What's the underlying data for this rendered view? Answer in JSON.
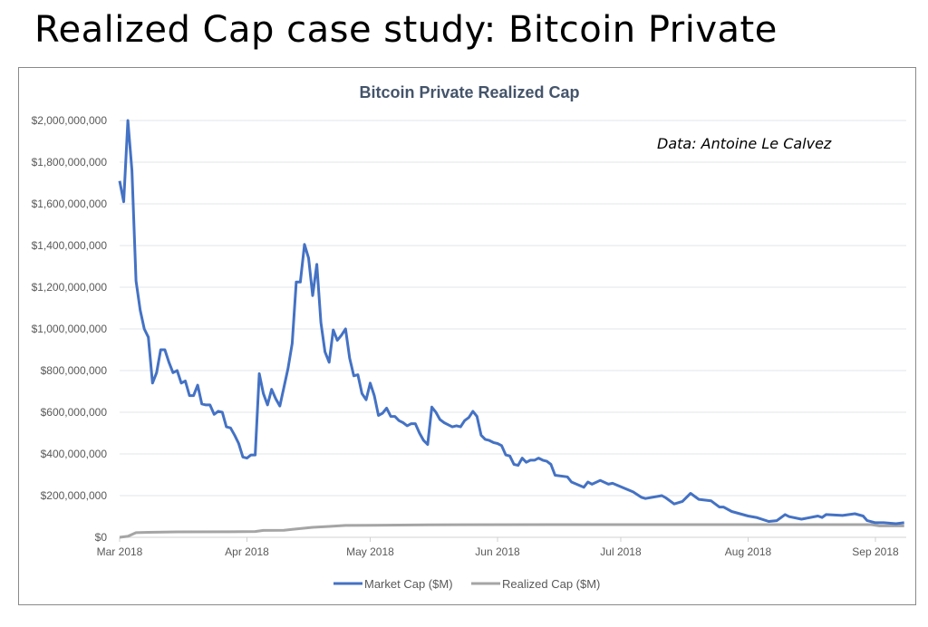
{
  "slide_title": "Realized Cap case study: Bitcoin Private",
  "chart_data": {
    "type": "line",
    "title": "Bitcoin Private Realized Cap",
    "annotation": "Data: Antoine Le Calvez",
    "xlabel": "",
    "ylabel": "",
    "xlim": [
      "2018-03-01",
      "2018-09-09"
    ],
    "ylim": [
      0,
      2000000000
    ],
    "y_ticks": [
      0,
      200000000,
      400000000,
      600000000,
      800000000,
      1000000000,
      1200000000,
      1400000000,
      1600000000,
      1800000000,
      2000000000
    ],
    "y_tick_labels": [
      "$0",
      "$200,000,000",
      "$400,000,000",
      "$600,000,000",
      "$800,000,000",
      "$1,000,000,000",
      "$1,200,000,000",
      "$1,400,000,000",
      "$1,600,000,000",
      "$1,800,000,000",
      "$2,000,000,000"
    ],
    "x_ticks": [
      "2018-03-01",
      "2018-04-01",
      "2018-05-01",
      "2018-06-01",
      "2018-07-01",
      "2018-08-01",
      "2018-09-01"
    ],
    "x_tick_labels": [
      "Mar 2018",
      "Apr 2018",
      "May 2018",
      "Jun 2018",
      "Jul 2018",
      "Aug 2018",
      "Sep 2018"
    ],
    "grid": "horizontal",
    "legend_placement": "bottom",
    "series": [
      {
        "name": "Market Cap ($M)",
        "color": "#4472c4",
        "points": [
          [
            "2018-03-01",
            1710
          ],
          [
            "2018-03-02",
            1610
          ],
          [
            "2018-03-03",
            2000
          ],
          [
            "2018-03-04",
            1760
          ],
          [
            "2018-03-05",
            1230
          ],
          [
            "2018-03-06",
            1090
          ],
          [
            "2018-03-07",
            1000
          ],
          [
            "2018-03-08",
            960
          ],
          [
            "2018-03-09",
            740
          ],
          [
            "2018-03-10",
            790
          ],
          [
            "2018-03-11",
            900
          ],
          [
            "2018-03-12",
            900
          ],
          [
            "2018-03-13",
            840
          ],
          [
            "2018-03-14",
            790
          ],
          [
            "2018-03-15",
            800
          ],
          [
            "2018-03-16",
            740
          ],
          [
            "2018-03-17",
            750
          ],
          [
            "2018-03-18",
            680
          ],
          [
            "2018-03-19",
            680
          ],
          [
            "2018-03-20",
            730
          ],
          [
            "2018-03-21",
            640
          ],
          [
            "2018-03-22",
            635
          ],
          [
            "2018-03-23",
            635
          ],
          [
            "2018-03-24",
            590
          ],
          [
            "2018-03-25",
            605
          ],
          [
            "2018-03-26",
            600
          ],
          [
            "2018-03-27",
            530
          ],
          [
            "2018-03-28",
            525
          ],
          [
            "2018-03-29",
            490
          ],
          [
            "2018-03-30",
            450
          ],
          [
            "2018-03-31",
            385
          ],
          [
            "2018-04-01",
            380
          ],
          [
            "2018-04-02",
            395
          ],
          [
            "2018-04-03",
            395
          ],
          [
            "2018-04-04",
            785
          ],
          [
            "2018-04-05",
            690
          ],
          [
            "2018-04-06",
            635
          ],
          [
            "2018-04-07",
            710
          ],
          [
            "2018-04-08",
            665
          ],
          [
            "2018-04-09",
            630
          ],
          [
            "2018-04-10",
            720
          ],
          [
            "2018-04-11",
            810
          ],
          [
            "2018-04-12",
            930
          ],
          [
            "2018-04-13",
            1225
          ],
          [
            "2018-04-14",
            1225
          ],
          [
            "2018-04-15",
            1405
          ],
          [
            "2018-04-16",
            1340
          ],
          [
            "2018-04-17",
            1160
          ],
          [
            "2018-04-18",
            1310
          ],
          [
            "2018-04-19",
            1030
          ],
          [
            "2018-04-20",
            890
          ],
          [
            "2018-04-21",
            840
          ],
          [
            "2018-04-22",
            995
          ],
          [
            "2018-04-23",
            945
          ],
          [
            "2018-04-24",
            970
          ],
          [
            "2018-04-25",
            1000
          ],
          [
            "2018-04-26",
            860
          ],
          [
            "2018-04-27",
            775
          ],
          [
            "2018-04-28",
            780
          ],
          [
            "2018-04-29",
            690
          ],
          [
            "2018-04-30",
            660
          ],
          [
            "2018-05-01",
            740
          ],
          [
            "2018-05-02",
            680
          ],
          [
            "2018-05-03",
            585
          ],
          [
            "2018-05-04",
            595
          ],
          [
            "2018-05-05",
            620
          ],
          [
            "2018-05-06",
            580
          ],
          [
            "2018-05-07",
            580
          ],
          [
            "2018-05-08",
            560
          ],
          [
            "2018-05-09",
            550
          ],
          [
            "2018-05-10",
            535
          ],
          [
            "2018-05-11",
            545
          ],
          [
            "2018-05-12",
            545
          ],
          [
            "2018-05-13",
            500
          ],
          [
            "2018-05-14",
            465
          ],
          [
            "2018-05-15",
            445
          ],
          [
            "2018-05-16",
            625
          ],
          [
            "2018-05-17",
            600
          ],
          [
            "2018-05-18",
            565
          ],
          [
            "2018-05-19",
            550
          ],
          [
            "2018-05-20",
            540
          ],
          [
            "2018-05-21",
            530
          ],
          [
            "2018-05-22",
            535
          ],
          [
            "2018-05-23",
            530
          ],
          [
            "2018-05-24",
            560
          ],
          [
            "2018-05-25",
            575
          ],
          [
            "2018-05-26",
            605
          ],
          [
            "2018-05-27",
            580
          ],
          [
            "2018-05-28",
            490
          ],
          [
            "2018-05-29",
            470
          ],
          [
            "2018-05-30",
            465
          ],
          [
            "2018-05-31",
            455
          ],
          [
            "2018-06-01",
            450
          ],
          [
            "2018-06-02",
            440
          ],
          [
            "2018-06-03",
            395
          ],
          [
            "2018-06-04",
            390
          ],
          [
            "2018-06-05",
            350
          ],
          [
            "2018-06-06",
            345
          ],
          [
            "2018-06-07",
            380
          ],
          [
            "2018-06-08",
            360
          ],
          [
            "2018-06-09",
            370
          ],
          [
            "2018-06-10",
            370
          ],
          [
            "2018-06-11",
            380
          ],
          [
            "2018-06-12",
            370
          ],
          [
            "2018-06-13",
            365
          ],
          [
            "2018-06-14",
            350
          ],
          [
            "2018-06-15",
            298
          ],
          [
            "2018-06-18",
            290
          ],
          [
            "2018-06-19",
            265
          ],
          [
            "2018-06-22",
            240
          ],
          [
            "2018-06-23",
            265
          ],
          [
            "2018-06-24",
            255
          ],
          [
            "2018-06-26",
            273
          ],
          [
            "2018-06-28",
            255
          ],
          [
            "2018-06-29",
            259
          ],
          [
            "2018-07-04",
            218
          ],
          [
            "2018-07-06",
            192
          ],
          [
            "2018-07-07",
            186
          ],
          [
            "2018-07-11",
            200
          ],
          [
            "2018-07-12",
            189
          ],
          [
            "2018-07-14",
            160
          ],
          [
            "2018-07-16",
            172
          ],
          [
            "2018-07-18",
            211
          ],
          [
            "2018-07-20",
            182
          ],
          [
            "2018-07-23",
            175
          ],
          [
            "2018-07-25",
            145
          ],
          [
            "2018-07-26",
            145
          ],
          [
            "2018-07-28",
            124
          ],
          [
            "2018-08-01",
            102
          ],
          [
            "2018-08-03",
            95
          ],
          [
            "2018-08-06",
            76
          ],
          [
            "2018-08-08",
            80
          ],
          [
            "2018-08-10",
            109
          ],
          [
            "2018-08-11",
            99
          ],
          [
            "2018-08-14",
            87
          ],
          [
            "2018-08-18",
            102
          ],
          [
            "2018-08-19",
            95
          ],
          [
            "2018-08-20",
            109
          ],
          [
            "2018-08-24",
            105
          ],
          [
            "2018-08-27",
            113
          ],
          [
            "2018-08-29",
            102
          ],
          [
            "2018-08-30",
            80
          ],
          [
            "2018-09-01",
            70
          ],
          [
            "2018-09-03",
            70
          ],
          [
            "2018-09-06",
            65
          ],
          [
            "2018-09-08",
            70
          ]
        ]
      },
      {
        "name": "Realized Cap ($M)",
        "color": "#a5a5a5",
        "points": [
          [
            "2018-03-01",
            0
          ],
          [
            "2018-03-03",
            5
          ],
          [
            "2018-03-05",
            22
          ],
          [
            "2018-03-08",
            24
          ],
          [
            "2018-03-15",
            26
          ],
          [
            "2018-03-31",
            27
          ],
          [
            "2018-04-03",
            28
          ],
          [
            "2018-04-05",
            33
          ],
          [
            "2018-04-10",
            34
          ],
          [
            "2018-04-12",
            38
          ],
          [
            "2018-04-17",
            48
          ],
          [
            "2018-04-21",
            52
          ],
          [
            "2018-04-25",
            57
          ],
          [
            "2018-05-01",
            58
          ],
          [
            "2018-05-15",
            60
          ],
          [
            "2018-06-15",
            61
          ],
          [
            "2018-08-01",
            61
          ],
          [
            "2018-08-31",
            61
          ],
          [
            "2018-09-02",
            55
          ],
          [
            "2018-09-08",
            55
          ]
        ]
      }
    ]
  }
}
